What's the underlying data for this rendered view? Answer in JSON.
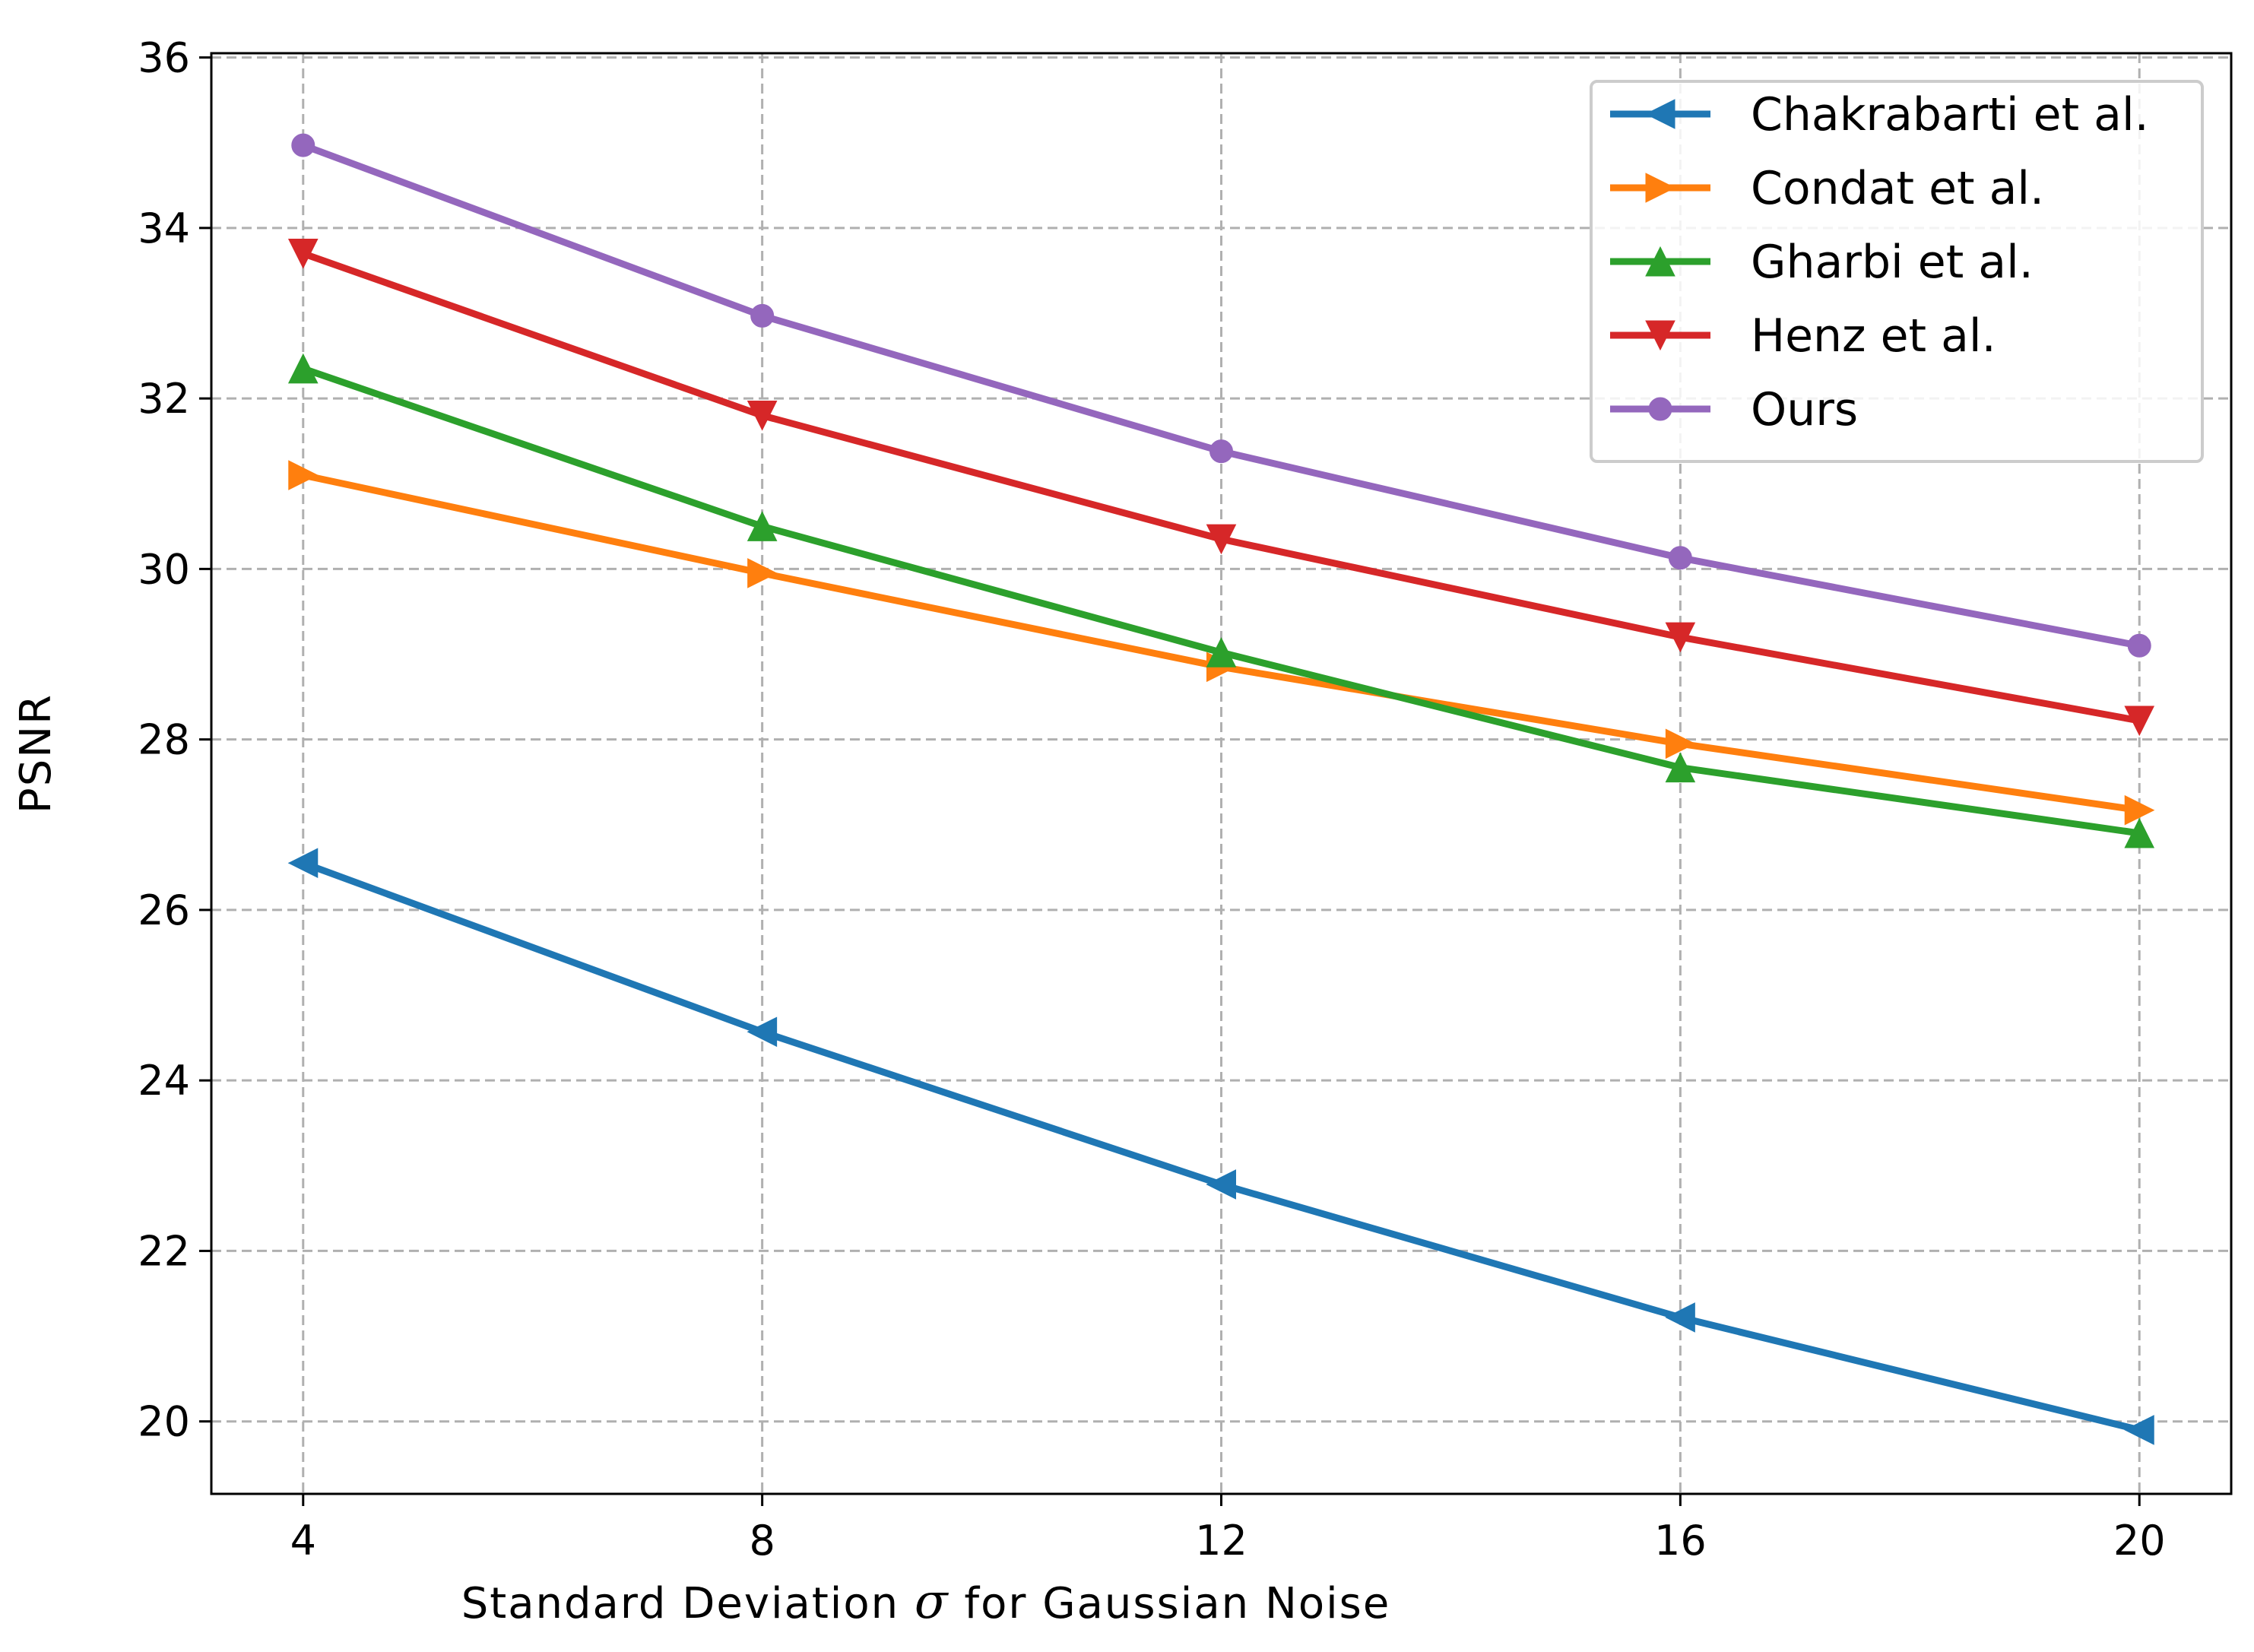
{
  "chart_data": {
    "type": "line",
    "title": "",
    "xlabel": "Standard Deviation",
    "xlabel_symbol": "σ",
    "xlabel_suffix": "for Gaussian Noise",
    "ylabel": "PSNR",
    "x": [
      4,
      8,
      12,
      16,
      20
    ],
    "xticks": [
      4,
      8,
      12,
      16,
      20
    ],
    "yticks": [
      20,
      22,
      24,
      26,
      28,
      30,
      32,
      34,
      36
    ],
    "xlim": [
      3.2,
      20.8
    ],
    "ylim": [
      19.15,
      36.05
    ],
    "grid": true,
    "legend_position": "top-right",
    "series": [
      {
        "name": "Chakrabarti et al.",
        "color": "#1f77b4",
        "marker": "triangle-left",
        "values": [
          26.55,
          24.57,
          22.78,
          21.22,
          19.9
        ]
      },
      {
        "name": "Condat et al.",
        "color": "#ff7f0e",
        "marker": "triangle-right",
        "values": [
          31.1,
          29.95,
          28.85,
          27.95,
          27.17
        ]
      },
      {
        "name": "Gharbi et al.",
        "color": "#2ca02c",
        "marker": "triangle-up",
        "values": [
          32.35,
          30.5,
          29.02,
          27.67,
          26.9
        ]
      },
      {
        "name": "Henz et al.",
        "color": "#d62728",
        "marker": "triangle-down",
        "values": [
          33.7,
          31.8,
          30.35,
          29.2,
          28.22
        ]
      },
      {
        "name": "Ours",
        "color": "#9467bd",
        "marker": "circle",
        "values": [
          34.97,
          32.97,
          31.38,
          30.13,
          29.1
        ]
      }
    ]
  }
}
